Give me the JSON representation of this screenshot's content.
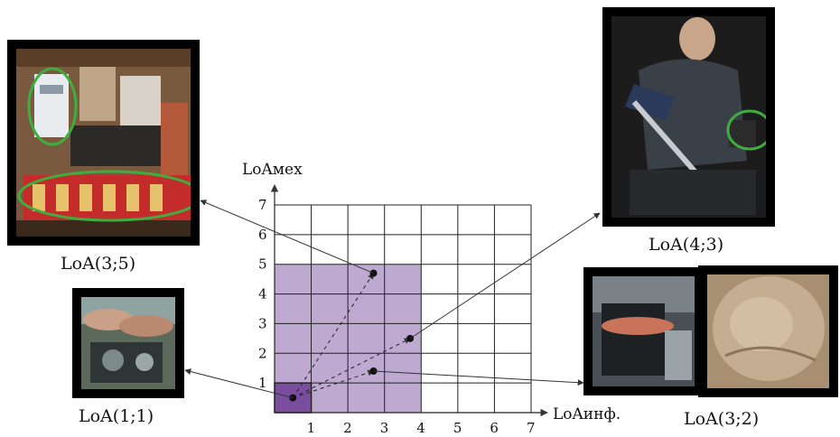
{
  "y_axis_title": "LoAмех",
  "x_axis_title": "LoAинф.",
  "x_ticks": [
    "1",
    "2",
    "3",
    "4",
    "5",
    "6",
    "7"
  ],
  "y_ticks": [
    "1",
    "2",
    "3",
    "4",
    "5",
    "6",
    "7"
  ],
  "captions": {
    "top_left": "LoA(3;5)",
    "bottom_left": "LoA(1;1)",
    "top_right": "LoA(4;3)",
    "bottom_right": "LoA(3;2)"
  },
  "colors": {
    "shaded_area": "#b39ac9",
    "origin_box": "#7a4d9e",
    "highlight_ring": "#3fae3f",
    "frame": "#000000"
  },
  "chart_data": {
    "type": "scatter",
    "xlabel": "LoAинф.",
    "ylabel": "LoAмех",
    "xlim": [
      0,
      7
    ],
    "ylim": [
      0,
      7
    ],
    "grid": true,
    "shaded_region": {
      "x": [
        0,
        4
      ],
      "y": [
        0,
        5
      ]
    },
    "origin_region": {
      "x": [
        0,
        1
      ],
      "y": [
        0,
        1
      ]
    },
    "points": [
      {
        "x": 0.5,
        "y": 0.5,
        "label": "LoA(1;1)"
      },
      {
        "x": 2.7,
        "y": 4.7,
        "label": "LoA(3;5)"
      },
      {
        "x": 3.7,
        "y": 2.5,
        "label": "LoA(4;3)"
      },
      {
        "x": 2.7,
        "y": 1.4,
        "label": "LoA(3;2)"
      }
    ]
  }
}
